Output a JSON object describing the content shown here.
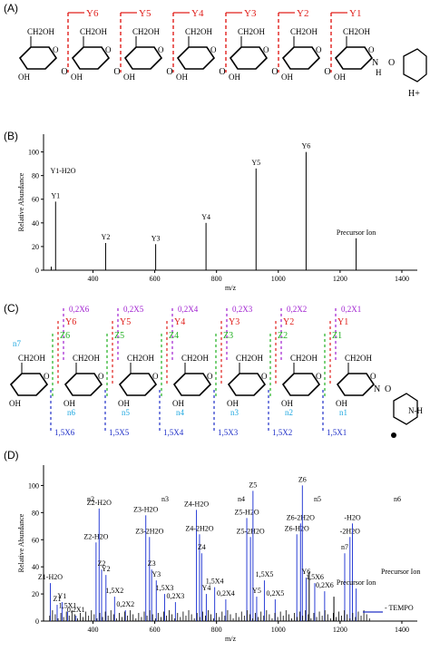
{
  "panels": {
    "a": "(A)",
    "b": "(B)",
    "c": "(C)",
    "d": "(D)"
  },
  "structure_a": {
    "y_labels": [
      "Y6",
      "Y5",
      "Y4",
      "Y3",
      "Y2",
      "Y1"
    ],
    "ring_text": {
      "ch2oh": "CH2OH",
      "oh": "OH",
      "o": "O",
      "n": "N",
      "h": "H",
      "hplus": "H+"
    }
  },
  "structure_c": {
    "x02_labels": [
      "0,2X6",
      "0,2X5",
      "0,2X4",
      "0,2X3",
      "0,2X2",
      "0,2X1"
    ],
    "y_labels": [
      "Y6",
      "Y5",
      "Y4",
      "Y3",
      "Y2",
      "Y1"
    ],
    "z_labels": [
      "Z6",
      "Z5",
      "Z4",
      "Z3",
      "Z2",
      "Z1"
    ],
    "n_labels": [
      "n7",
      "n6",
      "n5",
      "n4",
      "n3",
      "n2",
      "n1"
    ],
    "x15_labels": [
      "1,5X6",
      "1,5X5",
      "1,5X4",
      "1,5X3",
      "1,5X2",
      "1,5X1"
    ]
  },
  "colors": {
    "red": "#e0201c",
    "magenta": "#a020d0",
    "green": "#20b020",
    "cyan": "#20a8e0",
    "blue": "#2030c8",
    "leader": "#7a8bff"
  },
  "chart_data": [
    {
      "type": "bar",
      "xlabel": "m/z",
      "ylabel": "Relative Abundance",
      "xlim": [
        240,
        1450
      ],
      "ylim": [
        0,
        115
      ],
      "xticks": [
        400,
        600,
        800,
        1000,
        1200,
        1400
      ],
      "yticks": [
        0,
        20,
        40,
        60,
        80,
        100
      ],
      "peaks": [
        {
          "mz": 265,
          "value": 3,
          "label": ""
        },
        {
          "mz": 279,
          "value": 58,
          "label": "Y1"
        },
        {
          "mz": 441,
          "value": 23,
          "label": "Y2"
        },
        {
          "mz": 603,
          "value": 22,
          "label": "Y3"
        },
        {
          "mz": 766,
          "value": 40,
          "label": "Y4"
        },
        {
          "mz": 928,
          "value": 86,
          "label": "Y5"
        },
        {
          "mz": 1090,
          "value": 100,
          "label": "Y6"
        },
        {
          "mz": 1252,
          "value": 27,
          "label": "Precursor Ion"
        }
      ],
      "annotations": [
        {
          "mz": 262,
          "value": 82,
          "label": "Y1-H2O"
        }
      ]
    },
    {
      "type": "bar",
      "xlabel": "m/z",
      "ylabel": "Relative Abundance",
      "xlim": [
        240,
        1450
      ],
      "ylim": [
        0,
        115
      ],
      "xticks": [
        400,
        600,
        800,
        1000,
        1200,
        1400
      ],
      "yticks": [
        0,
        20,
        40,
        60,
        80,
        100
      ],
      "peaks": [
        {
          "mz": 262,
          "value": 28,
          "label": "Z1-H2O"
        },
        {
          "mz": 284,
          "value": 12,
          "label": "Z1"
        },
        {
          "mz": 300,
          "value": 14,
          "label": "Y1"
        },
        {
          "mz": 318,
          "value": 7,
          "label": "1,5X1"
        },
        {
          "mz": 345,
          "value": 4,
          "label": "0,2X1"
        },
        {
          "mz": 410,
          "value": 58,
          "label": "Z2-H2O"
        },
        {
          "mz": 420,
          "value": 83,
          "label": "Z2-H2O"
        },
        {
          "mz": 428,
          "value": 38,
          "label": "Z2"
        },
        {
          "mz": 442,
          "value": 34,
          "label": "Y2"
        },
        {
          "mz": 470,
          "value": 18,
          "label": "1,5X2"
        },
        {
          "mz": 505,
          "value": 8,
          "label": "0,2X2"
        },
        {
          "mz": 571,
          "value": 78,
          "label": "Z3-H2O"
        },
        {
          "mz": 583,
          "value": 62,
          "label": "Z3-2H2O"
        },
        {
          "mz": 590,
          "value": 38,
          "label": "Z3"
        },
        {
          "mz": 605,
          "value": 30,
          "label": "Y3"
        },
        {
          "mz": 632,
          "value": 20,
          "label": "1,5X3"
        },
        {
          "mz": 667,
          "value": 14,
          "label": "0,2X3"
        },
        {
          "mz": 735,
          "value": 82,
          "label": "Z4-H2O"
        },
        {
          "mz": 745,
          "value": 64,
          "label": "Z4-2H2O"
        },
        {
          "mz": 752,
          "value": 50,
          "label": "Z4"
        },
        {
          "mz": 767,
          "value": 20,
          "label": "Y4"
        },
        {
          "mz": 794,
          "value": 25,
          "label": "1,5X4"
        },
        {
          "mz": 830,
          "value": 16,
          "label": "0,2X4"
        },
        {
          "mz": 898,
          "value": 76,
          "label": "Z5-H2O"
        },
        {
          "mz": 910,
          "value": 62,
          "label": "Z5-2H2O"
        },
        {
          "mz": 918,
          "value": 96,
          "label": "Z5"
        },
        {
          "mz": 930,
          "value": 18,
          "label": "Y5"
        },
        {
          "mz": 955,
          "value": 30,
          "label": "1,5X5"
        },
        {
          "mz": 990,
          "value": 16,
          "label": "0,2X5"
        },
        {
          "mz": 1060,
          "value": 64,
          "label": "Z6-H2O"
        },
        {
          "mz": 1072,
          "value": 72,
          "label": "Z6-2H2O"
        },
        {
          "mz": 1078,
          "value": 100,
          "label": "Z6"
        },
        {
          "mz": 1090,
          "value": 32,
          "label": "Y6"
        },
        {
          "mz": 1118,
          "value": 28,
          "label": "1,5X6"
        },
        {
          "mz": 1150,
          "value": 22,
          "label": "0,2X6"
        },
        {
          "mz": 1215,
          "value": 50,
          "label": "n7"
        },
        {
          "mz": 1232,
          "value": 62,
          "label": "-2H2O"
        },
        {
          "mz": 1240,
          "value": 72,
          "label": "-H2O"
        },
        {
          "mz": 1252,
          "value": 24,
          "label": "Precursor Ion"
        },
        {
          "mz": 1100,
          "value": 36,
          "label": ""
        },
        {
          "mz": 1180,
          "value": 18,
          "label": ""
        }
      ],
      "annotations": [
        {
          "label": "Precursor Ion"
        },
        {
          "label": "- TEMPO"
        },
        {
          "label": "n2"
        },
        {
          "label": "n3"
        },
        {
          "label": "n4"
        },
        {
          "label": "n5"
        },
        {
          "label": "n6"
        }
      ]
    }
  ]
}
